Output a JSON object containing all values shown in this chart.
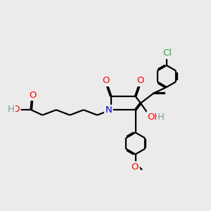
{
  "bg_color": "#ebebeb",
  "atom_colors": {
    "O": "#ff0000",
    "N": "#0000cc",
    "Cl": "#33aa33",
    "H": "#7a9a9a",
    "C": "#000000"
  },
  "bond_color": "#000000",
  "bond_width": 1.6,
  "fig_size": [
    3.0,
    3.0
  ],
  "dpi": 100
}
